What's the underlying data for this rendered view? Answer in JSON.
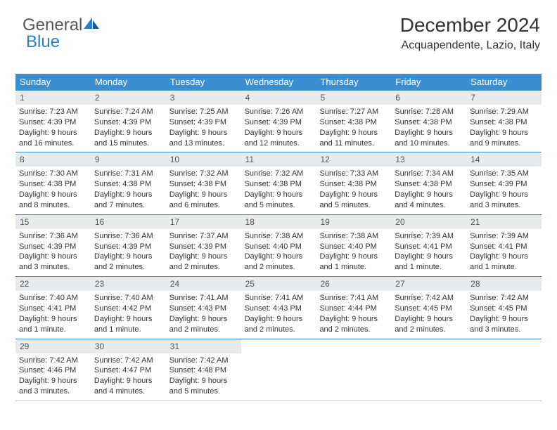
{
  "logo": {
    "part1": "General",
    "part2": "Blue"
  },
  "title": "December 2024",
  "subtitle": "Acquapendente, Lazio, Italy",
  "colors": {
    "header_bg": "#3b8fd1",
    "header_text": "#ffffff",
    "daynum_bg": "#e8ebed",
    "row_border": "#3b8fd1",
    "body_text": "#333333",
    "logo_gray": "#555555",
    "logo_blue": "#2b7fc4"
  },
  "weekdays": [
    "Sunday",
    "Monday",
    "Tuesday",
    "Wednesday",
    "Thursday",
    "Friday",
    "Saturday"
  ],
  "weeks": [
    [
      {
        "n": "1",
        "sunrise": "7:23 AM",
        "sunset": "4:39 PM",
        "daylight": "9 hours and 16 minutes."
      },
      {
        "n": "2",
        "sunrise": "7:24 AM",
        "sunset": "4:39 PM",
        "daylight": "9 hours and 15 minutes."
      },
      {
        "n": "3",
        "sunrise": "7:25 AM",
        "sunset": "4:39 PM",
        "daylight": "9 hours and 13 minutes."
      },
      {
        "n": "4",
        "sunrise": "7:26 AM",
        "sunset": "4:39 PM",
        "daylight": "9 hours and 12 minutes."
      },
      {
        "n": "5",
        "sunrise": "7:27 AM",
        "sunset": "4:38 PM",
        "daylight": "9 hours and 11 minutes."
      },
      {
        "n": "6",
        "sunrise": "7:28 AM",
        "sunset": "4:38 PM",
        "daylight": "9 hours and 10 minutes."
      },
      {
        "n": "7",
        "sunrise": "7:29 AM",
        "sunset": "4:38 PM",
        "daylight": "9 hours and 9 minutes."
      }
    ],
    [
      {
        "n": "8",
        "sunrise": "7:30 AM",
        "sunset": "4:38 PM",
        "daylight": "9 hours and 8 minutes."
      },
      {
        "n": "9",
        "sunrise": "7:31 AM",
        "sunset": "4:38 PM",
        "daylight": "9 hours and 7 minutes."
      },
      {
        "n": "10",
        "sunrise": "7:32 AM",
        "sunset": "4:38 PM",
        "daylight": "9 hours and 6 minutes."
      },
      {
        "n": "11",
        "sunrise": "7:32 AM",
        "sunset": "4:38 PM",
        "daylight": "9 hours and 5 minutes."
      },
      {
        "n": "12",
        "sunrise": "7:33 AM",
        "sunset": "4:38 PM",
        "daylight": "9 hours and 5 minutes."
      },
      {
        "n": "13",
        "sunrise": "7:34 AM",
        "sunset": "4:38 PM",
        "daylight": "9 hours and 4 minutes."
      },
      {
        "n": "14",
        "sunrise": "7:35 AM",
        "sunset": "4:39 PM",
        "daylight": "9 hours and 3 minutes."
      }
    ],
    [
      {
        "n": "15",
        "sunrise": "7:36 AM",
        "sunset": "4:39 PM",
        "daylight": "9 hours and 3 minutes."
      },
      {
        "n": "16",
        "sunrise": "7:36 AM",
        "sunset": "4:39 PM",
        "daylight": "9 hours and 2 minutes."
      },
      {
        "n": "17",
        "sunrise": "7:37 AM",
        "sunset": "4:39 PM",
        "daylight": "9 hours and 2 minutes."
      },
      {
        "n": "18",
        "sunrise": "7:38 AM",
        "sunset": "4:40 PM",
        "daylight": "9 hours and 2 minutes."
      },
      {
        "n": "19",
        "sunrise": "7:38 AM",
        "sunset": "4:40 PM",
        "daylight": "9 hours and 1 minute."
      },
      {
        "n": "20",
        "sunrise": "7:39 AM",
        "sunset": "4:41 PM",
        "daylight": "9 hours and 1 minute."
      },
      {
        "n": "21",
        "sunrise": "7:39 AM",
        "sunset": "4:41 PM",
        "daylight": "9 hours and 1 minute."
      }
    ],
    [
      {
        "n": "22",
        "sunrise": "7:40 AM",
        "sunset": "4:41 PM",
        "daylight": "9 hours and 1 minute."
      },
      {
        "n": "23",
        "sunrise": "7:40 AM",
        "sunset": "4:42 PM",
        "daylight": "9 hours and 1 minute."
      },
      {
        "n": "24",
        "sunrise": "7:41 AM",
        "sunset": "4:43 PM",
        "daylight": "9 hours and 2 minutes."
      },
      {
        "n": "25",
        "sunrise": "7:41 AM",
        "sunset": "4:43 PM",
        "daylight": "9 hours and 2 minutes."
      },
      {
        "n": "26",
        "sunrise": "7:41 AM",
        "sunset": "4:44 PM",
        "daylight": "9 hours and 2 minutes."
      },
      {
        "n": "27",
        "sunrise": "7:42 AM",
        "sunset": "4:45 PM",
        "daylight": "9 hours and 2 minutes."
      },
      {
        "n": "28",
        "sunrise": "7:42 AM",
        "sunset": "4:45 PM",
        "daylight": "9 hours and 3 minutes."
      }
    ],
    [
      {
        "n": "29",
        "sunrise": "7:42 AM",
        "sunset": "4:46 PM",
        "daylight": "9 hours and 3 minutes."
      },
      {
        "n": "30",
        "sunrise": "7:42 AM",
        "sunset": "4:47 PM",
        "daylight": "9 hours and 4 minutes."
      },
      {
        "n": "31",
        "sunrise": "7:42 AM",
        "sunset": "4:48 PM",
        "daylight": "9 hours and 5 minutes."
      },
      null,
      null,
      null,
      null
    ]
  ],
  "labels": {
    "sunrise_prefix": "Sunrise: ",
    "sunset_prefix": "Sunset: ",
    "daylight_prefix": "Daylight: "
  }
}
